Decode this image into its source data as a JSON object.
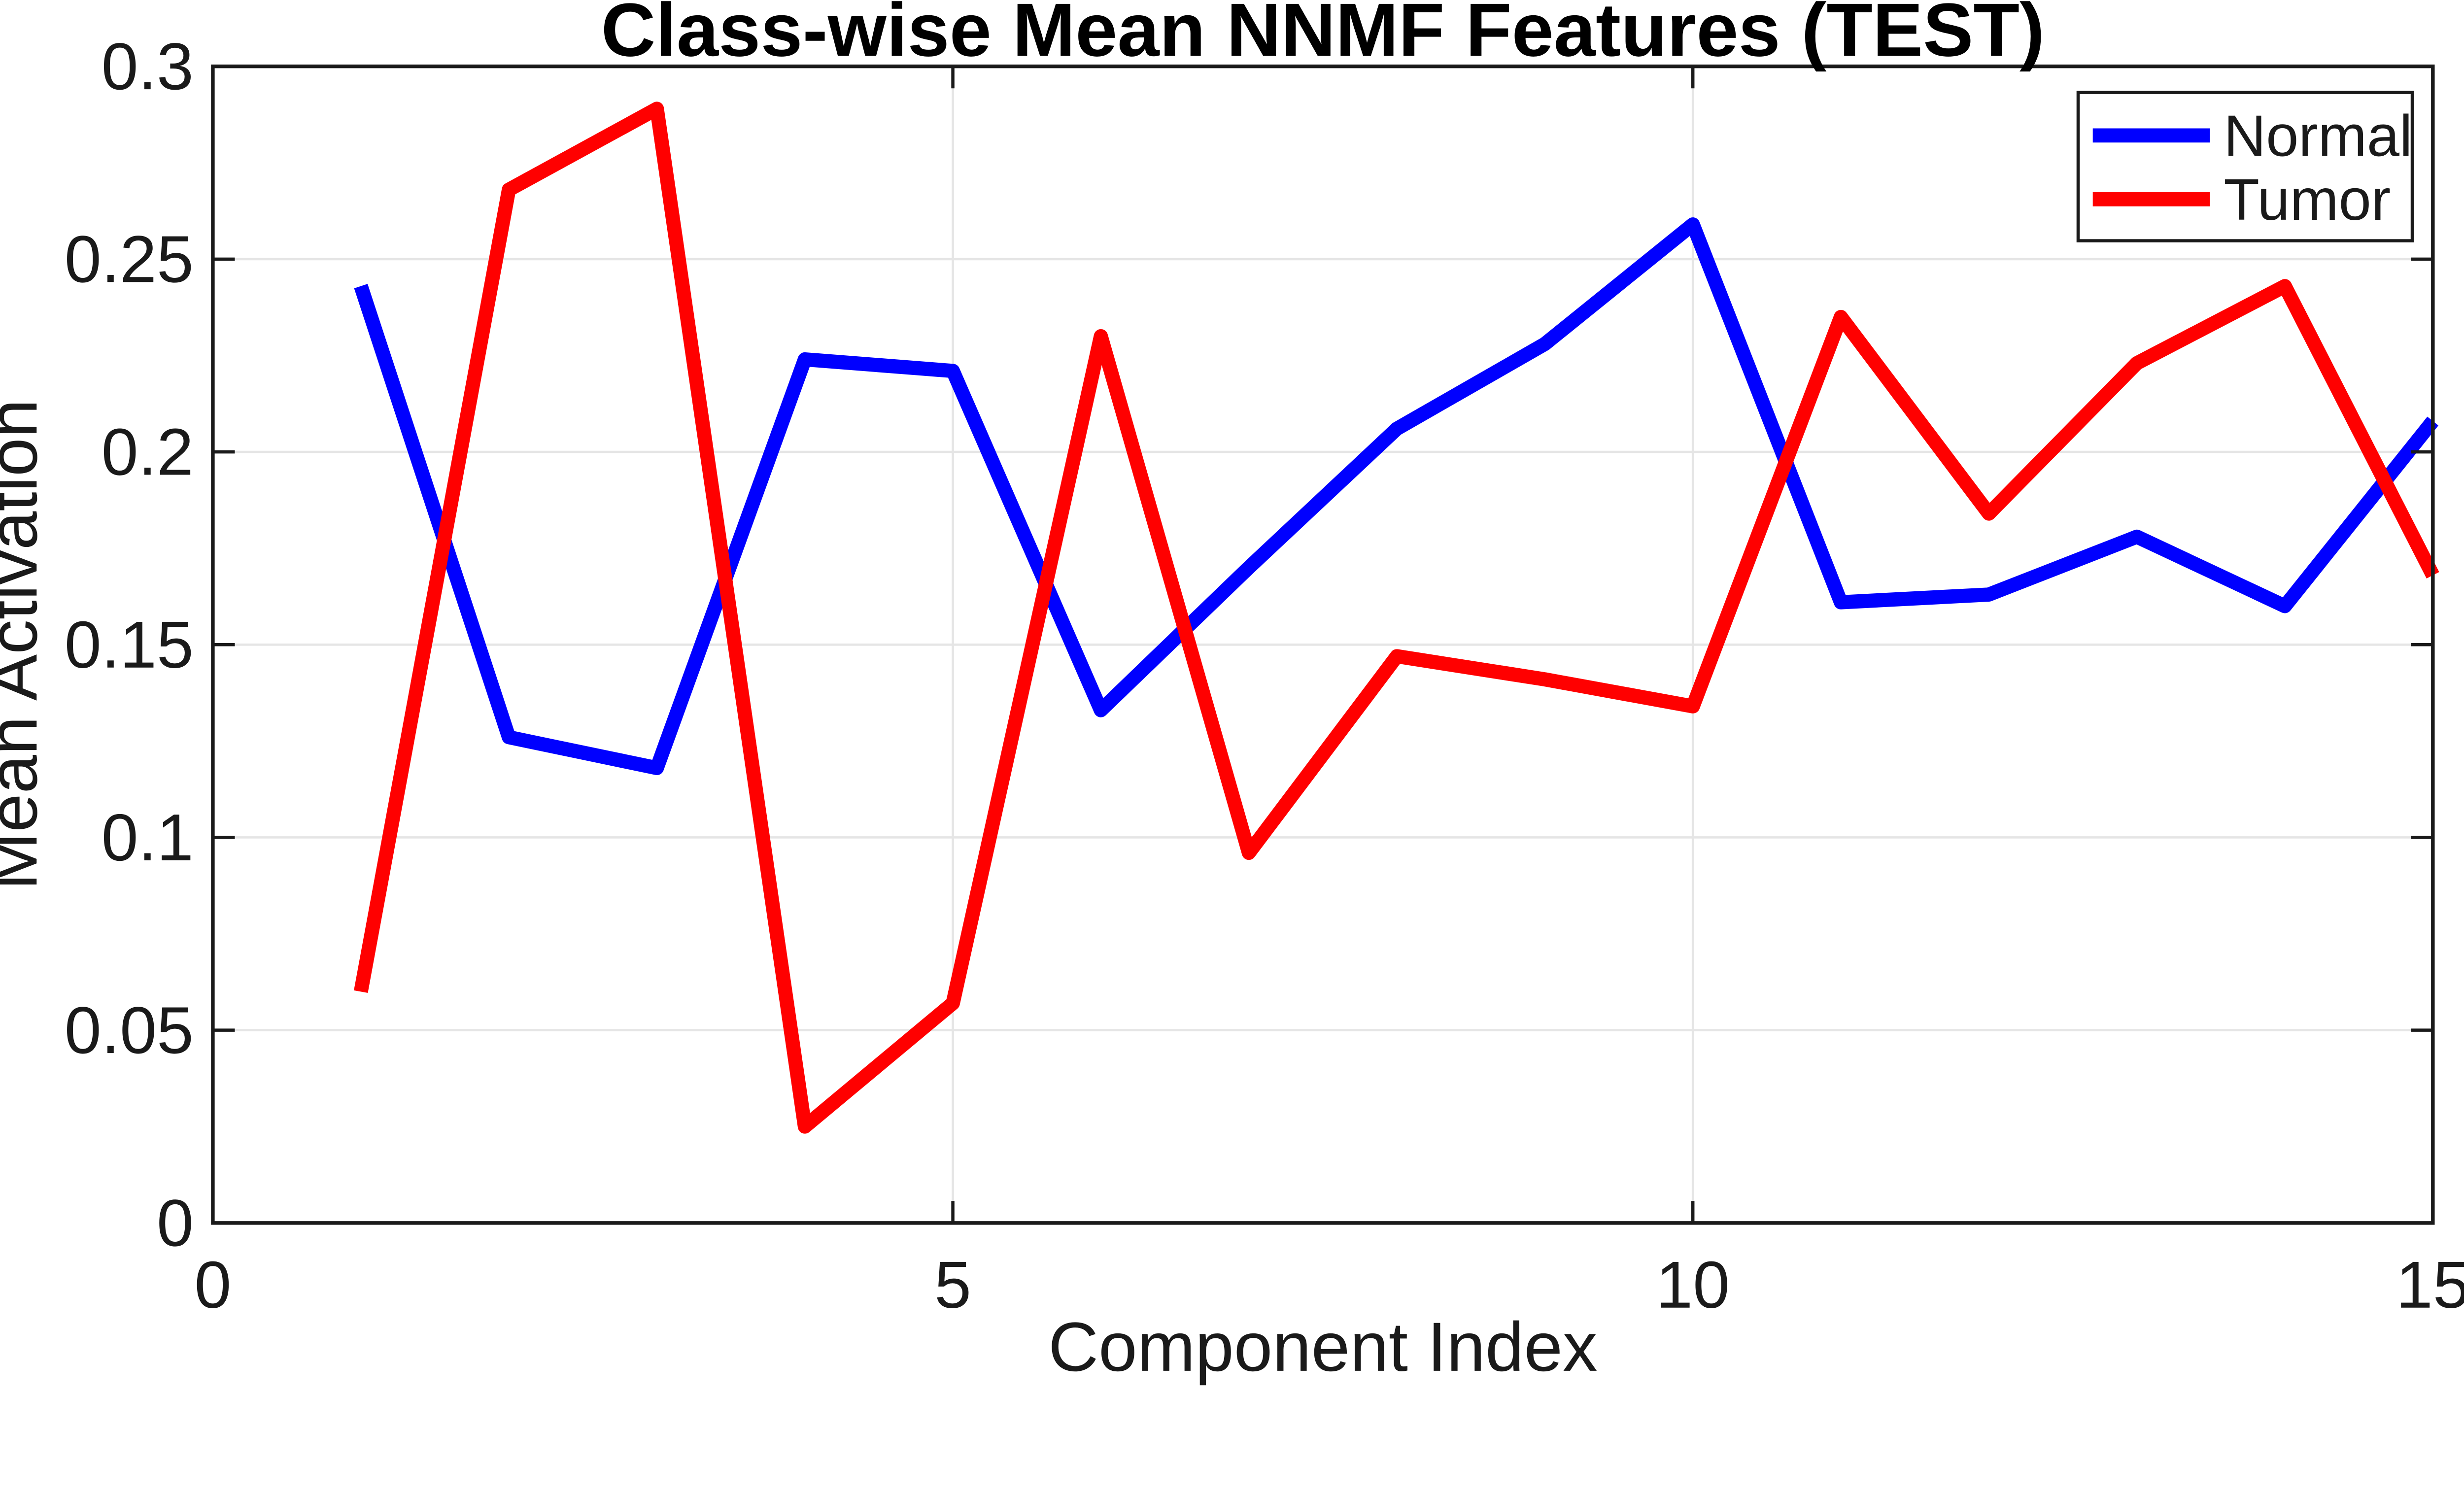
{
  "chart_data": {
    "type": "line",
    "title": "Class-wise Mean NNMF Features (TEST)",
    "xlabel": "Component Index",
    "ylabel": "Mean Activation",
    "x": [
      1,
      2,
      3,
      4,
      5,
      6,
      7,
      8,
      9,
      10,
      11,
      12,
      13,
      14,
      15
    ],
    "series": [
      {
        "name": "Normal",
        "color": "#0000ff",
        "values": [
          0.243,
          0.126,
          0.118,
          0.224,
          0.221,
          0.133,
          0.17,
          0.206,
          0.228,
          0.259,
          0.161,
          0.163,
          0.178,
          0.16,
          0.208
        ]
      },
      {
        "name": "Tumor",
        "color": "#ff0000",
        "values": [
          0.06,
          0.268,
          0.289,
          0.025,
          0.057,
          0.23,
          0.096,
          0.147,
          0.141,
          0.134,
          0.235,
          0.184,
          0.223,
          0.243,
          0.168
        ]
      }
    ],
    "xlim": [
      0,
      15
    ],
    "ylim": [
      0,
      0.3
    ],
    "xticks": [
      0,
      5,
      10,
      15
    ],
    "xtick_labels": [
      "0",
      "5",
      "10",
      "15"
    ],
    "yticks": [
      0,
      0.05,
      0.1,
      0.15,
      0.2,
      0.25,
      0.3
    ],
    "ytick_labels": [
      "0",
      "0.05",
      "0.1",
      "0.15",
      "0.2",
      "0.25",
      "0.3"
    ],
    "grid": true,
    "legend": {
      "position": "top-right",
      "entries": [
        "Normal",
        "Tumor"
      ]
    },
    "colors": {
      "axis": "#1a1a1a",
      "grid": "#e5e5e5",
      "background": "#ffffff",
      "normal_line": "#0000ff",
      "tumor_line": "#ff0000"
    }
  }
}
